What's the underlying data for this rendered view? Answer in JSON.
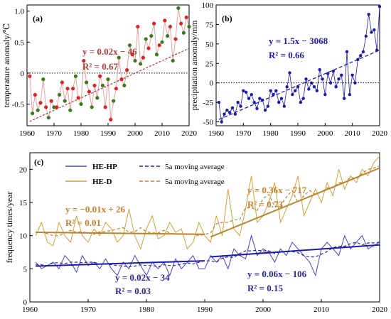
{
  "colors": {
    "temp_line": "#e6a0a0",
    "temp_point_red": "#dd2222",
    "temp_point_green": "#3c7a1e",
    "temp_trend": "#b23a3a",
    "temp_text": "#b23a3a",
    "precip": "#1c1ca8",
    "hehp": "#4444cc",
    "hed": "#d4a03a",
    "hed_text": "#c7802a",
    "hehp_text": "#2a2aa0"
  },
  "chart_data": [
    {
      "panel": "a",
      "type": "line",
      "label": "(a)",
      "ylabel": "temperature anomaly/℃",
      "xlim": [
        1960,
        2020
      ],
      "ylim": [
        -0.85,
        1.1
      ],
      "xticks": [
        1960,
        1970,
        1980,
        1990,
        2000,
        2010,
        2020
      ],
      "yticks": [
        -0.5,
        0.0,
        0.5,
        1.0
      ],
      "ytick_labels": [
        "-0.5",
        "0",
        "0.5",
        "1.0"
      ],
      "zero_line": true,
      "equation": "y = 0.02x − 46",
      "r2": "R² = 0.67",
      "trend": {
        "x": [
          1961,
          2020
        ],
        "y": [
          -0.78,
          0.4
        ]
      },
      "x": [
        1961,
        1962,
        1963,
        1964,
        1965,
        1966,
        1967,
        1968,
        1969,
        1970,
        1971,
        1972,
        1973,
        1974,
        1975,
        1976,
        1977,
        1978,
        1979,
        1980,
        1981,
        1982,
        1983,
        1984,
        1985,
        1986,
        1987,
        1988,
        1989,
        1990,
        1991,
        1992,
        1993,
        1994,
        1995,
        1996,
        1997,
        1998,
        1999,
        2000,
        2001,
        2002,
        2003,
        2004,
        2005,
        2006,
        2007,
        2008,
        2009,
        2010,
        2011,
        2012,
        2013,
        2014,
        2015,
        2016,
        2017,
        2018,
        2019,
        2020
      ],
      "values": [
        -0.05,
        -0.65,
        -0.35,
        -0.6,
        -0.48,
        -0.1,
        -0.55,
        -0.72,
        -0.45,
        -0.55,
        -0.55,
        -0.35,
        -0.15,
        -0.45,
        -0.25,
        -0.6,
        -0.25,
        -0.05,
        -0.4,
        -0.5,
        0.2,
        -0.15,
        -0.3,
        -0.55,
        -0.2,
        -0.4,
        -0.05,
        -0.2,
        -0.55,
        -0.1,
        -0.75,
        -0.45,
        -0.25,
        0.25,
        -0.1,
        -0.2,
        0.05,
        0.45,
        0.3,
        0.2,
        0.75,
        0.15,
        0.25,
        0.55,
        0.4,
        0.6,
        0.8,
        0.3,
        0.45,
        0.5,
        0.85,
        0.6,
        0.75,
        0.2,
        0.55,
        1.05,
        0.8,
        0.65,
        0.9,
        0.75
      ],
      "point_colors": [
        "r",
        "g",
        "r",
        "g",
        "r",
        "g",
        "r",
        "g",
        "r",
        "g",
        "r",
        "g",
        "r",
        "g",
        "r",
        "g",
        "r",
        "g",
        "r",
        "g",
        "r",
        "g",
        "r",
        "g",
        "r",
        "g",
        "r",
        "g",
        "r",
        "g",
        "r",
        "g",
        "r",
        "g",
        "r",
        "g",
        "r",
        "g",
        "r",
        "g",
        "r",
        "g",
        "r",
        "g",
        "r",
        "g",
        "r",
        "g",
        "r",
        "g",
        "r",
        "g",
        "r",
        "g",
        "r",
        "g",
        "r",
        "g",
        "r",
        "g"
      ]
    },
    {
      "panel": "b",
      "type": "line",
      "label": "(b)",
      "ylabel": "precipitation anomaly/mm",
      "xlim": [
        1960,
        2020
      ],
      "ylim": [
        -55,
        100
      ],
      "xticks": [
        1960,
        1970,
        1980,
        1990,
        2000,
        2010,
        2020
      ],
      "yticks": [
        -50,
        -25,
        0,
        25,
        50,
        75,
        100
      ],
      "zero_line": true,
      "equation": "y = 1.5x − 3068",
      "r2": "R² = 0.66",
      "trend": {
        "x": [
          1961,
          2020
        ],
        "y": [
          -47,
          42
        ]
      },
      "x": [
        1961,
        1962,
        1963,
        1964,
        1965,
        1966,
        1967,
        1968,
        1969,
        1970,
        1971,
        1972,
        1973,
        1974,
        1975,
        1976,
        1977,
        1978,
        1979,
        1980,
        1981,
        1982,
        1983,
        1984,
        1985,
        1986,
        1987,
        1988,
        1989,
        1990,
        1991,
        1992,
        1993,
        1994,
        1995,
        1996,
        1997,
        1998,
        1999,
        2000,
        2001,
        2002,
        2003,
        2004,
        2005,
        2006,
        2007,
        2008,
        2009,
        2010,
        2011,
        2012,
        2013,
        2014,
        2015,
        2016,
        2017,
        2018,
        2019,
        2020
      ],
      "values": [
        -25,
        -50,
        -40,
        -35,
        -38,
        -32,
        -40,
        -25,
        -30,
        -10,
        -12,
        -20,
        -15,
        -25,
        -33,
        -20,
        -22,
        -35,
        -30,
        -10,
        -15,
        -10,
        -25,
        -20,
        -30,
        -5,
        13,
        -15,
        -10,
        -5,
        -25,
        -20,
        5,
        -8,
        0,
        -5,
        -10,
        17,
        5,
        -15,
        12,
        0,
        15,
        -5,
        5,
        10,
        -20,
        40,
        -15,
        10,
        0,
        30,
        35,
        40,
        60,
        88,
        65,
        68,
        42,
        98
      ]
    },
    {
      "panel": "c",
      "type": "line",
      "label": "(c)",
      "ylabel": "frequency  times/year",
      "xlim": [
        1960,
        2020
      ],
      "ylim": [
        0,
        22.5
      ],
      "xticks": [
        1960,
        1970,
        1980,
        1990,
        2000,
        2010,
        2020
      ],
      "yticks": [
        0,
        5,
        10,
        15,
        20
      ],
      "legend": {
        "hehp": "HE-HP",
        "hed": "HE-D",
        "ma_hehp": "5a moving average",
        "ma_hed": "5a moving average"
      },
      "annotations": {
        "hed_early_eq": "y = −0.01x + 26",
        "hed_early_r2": "R² = 0.01",
        "hehp_early_eq": "y = 0.02x − 34",
        "hehp_early_r2": "R² = 0.03",
        "hed_late_eq": "y = 0.36x − 717",
        "hed_late_r2": "R² = 0.73",
        "hehp_late_eq": "y = 0.06x − 106",
        "hehp_late_r2": "R² = 0.15"
      },
      "trends": {
        "hed_early": {
          "x": [
            1961,
            1990
          ],
          "y": [
            10.5,
            10.2
          ]
        },
        "hehp_early": {
          "x": [
            1961,
            1990
          ],
          "y": [
            5.4,
            6.2
          ]
        },
        "hed_late": {
          "x": [
            1991,
            2020
          ],
          "y": [
            9.8,
            20.2
          ]
        },
        "hehp_late": {
          "x": [
            1991,
            2020
          ],
          "y": [
            6.8,
            8.6
          ]
        }
      },
      "x": [
        1961,
        1962,
        1963,
        1964,
        1965,
        1966,
        1967,
        1968,
        1969,
        1970,
        1971,
        1972,
        1973,
        1974,
        1975,
        1976,
        1977,
        1978,
        1979,
        1980,
        1981,
        1982,
        1983,
        1984,
        1985,
        1986,
        1987,
        1988,
        1989,
        1990,
        1991,
        1992,
        1993,
        1994,
        1995,
        1996,
        1997,
        1998,
        1999,
        2000,
        2001,
        2002,
        2003,
        2004,
        2005,
        2006,
        2007,
        2008,
        2009,
        2010,
        2011,
        2012,
        2013,
        2014,
        2015,
        2016,
        2017,
        2018,
        2019,
        2020
      ],
      "series": [
        {
          "name": "HE-D",
          "values": [
            10,
            12,
            9,
            8.5,
            12,
            10,
            9,
            13,
            10,
            9,
            11,
            10,
            12,
            11,
            9,
            10,
            14,
            10,
            8,
            11,
            13,
            9.5,
            10,
            12,
            10.5,
            11,
            8,
            9,
            12,
            10,
            9,
            13,
            10,
            17,
            11,
            10,
            14,
            19,
            12,
            13,
            15,
            18,
            12,
            14,
            16,
            19,
            13,
            15,
            17,
            15,
            18,
            16,
            20,
            17,
            19,
            18,
            20,
            19,
            21,
            22
          ]
        },
        {
          "name": "HE-HP",
          "values": [
            6,
            5,
            5.5,
            6,
            5,
            7,
            6,
            4.5,
            7,
            5.5,
            6,
            5,
            6.5,
            5,
            4,
            6,
            5,
            7,
            5.5,
            4,
            6,
            5,
            6,
            4,
            6.5,
            5,
            6,
            7,
            5,
            5,
            7,
            6,
            7,
            5,
            8,
            7,
            6.5,
            10,
            7,
            8,
            7.5,
            6,
            8,
            7,
            9,
            8,
            7,
            6,
            4,
            8,
            9,
            8,
            7,
            10,
            8,
            9,
            10,
            8,
            8.5,
            9
          ]
        },
        {
          "name": "HE-D 5a moving average",
          "values": [
            10.5,
            10.5,
            10.3,
            10,
            10,
            10.4,
            10.8,
            10.5,
            10.6,
            10.4,
            10.2,
            10.6,
            10.6,
            10.8,
            11,
            11.2,
            10.5,
            10.6,
            11.2,
            10.6,
            10.4,
            10.4,
            10.8,
            10.4,
            10.2,
            10.2,
            10.2,
            10.2,
            10,
            10.2,
            10.4,
            11.8,
            12,
            12,
            12.4,
            12.4,
            14.2,
            14.2,
            13.8,
            15.6,
            16.2,
            14.4,
            14.4,
            15.8,
            16.8,
            15,
            16,
            16.8,
            16.2,
            16.6,
            17.2,
            17.2,
            18,
            18,
            18.8,
            18.6,
            19.4,
            20,
            20.2,
            20.5
          ]
        },
        {
          "name": "HE-HP 5a moving average",
          "values": [
            5.6,
            5.6,
            5.5,
            5.9,
            5.9,
            5.8,
            6,
            6,
            5.9,
            6,
            6,
            5.7,
            5.7,
            5.6,
            5.5,
            5.4,
            5.3,
            5.4,
            5.6,
            5.5,
            5.5,
            5.3,
            5.6,
            5.5,
            5.5,
            5.7,
            5.9,
            5.7,
            6,
            6.2,
            6.2,
            6,
            6.6,
            6.8,
            6.7,
            7.3,
            7.7,
            7.7,
            7.8,
            7.7,
            7.7,
            7.3,
            7.5,
            7.6,
            7.6,
            7.4,
            7,
            6.8,
            6.8,
            7.2,
            7.6,
            8.2,
            8.4,
            8.4,
            8.8,
            9,
            8.6,
            8.9,
            8.9,
            9
          ]
        }
      ]
    }
  ]
}
